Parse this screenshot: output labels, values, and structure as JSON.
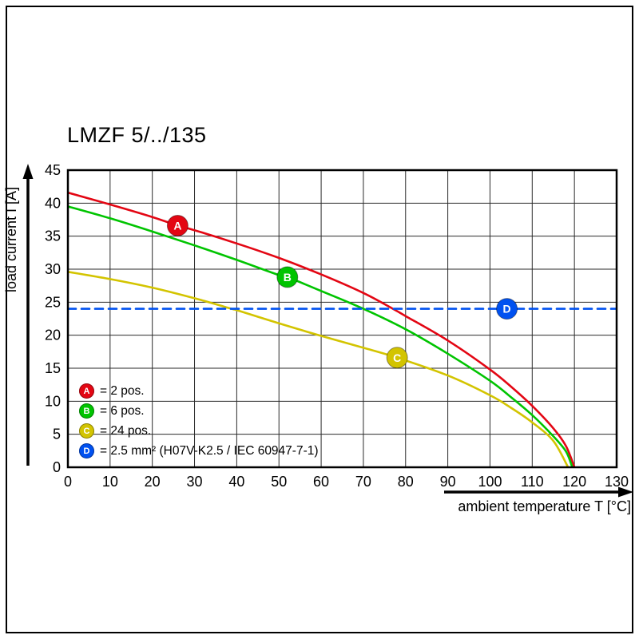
{
  "chart_data": {
    "type": "line",
    "title": "LMZF 5/../135",
    "xlabel": "ambient temperature T [°C]",
    "ylabel": "load current I [A]",
    "xlim": [
      0,
      130
    ],
    "ylim": [
      0,
      45
    ],
    "x_ticks": [
      0,
      10,
      20,
      30,
      40,
      50,
      60,
      70,
      80,
      90,
      100,
      110,
      120,
      130
    ],
    "y_ticks": [
      0,
      5,
      10,
      15,
      20,
      25,
      30,
      35,
      40,
      45
    ],
    "grid": true,
    "frame_color": "#000000",
    "grid_color": "#2a2a2a",
    "series": [
      {
        "id": "A",
        "name": "2 pos.",
        "color": "#e30613",
        "style": "solid",
        "marker_at": [
          26,
          36.6
        ],
        "points": [
          [
            0,
            41.6
          ],
          [
            10,
            39.8
          ],
          [
            20,
            37.9
          ],
          [
            26,
            36.6
          ],
          [
            30,
            35.9
          ],
          [
            40,
            33.9
          ],
          [
            50,
            31.7
          ],
          [
            60,
            29.2
          ],
          [
            70,
            26.4
          ],
          [
            77,
            24.0
          ],
          [
            80,
            22.9
          ],
          [
            90,
            19.2
          ],
          [
            100,
            14.8
          ],
          [
            105,
            12.2
          ],
          [
            110,
            9.3
          ],
          [
            115,
            5.9
          ],
          [
            118,
            3.2
          ],
          [
            120,
            0
          ]
        ]
      },
      {
        "id": "B",
        "name": "6 pos.",
        "color": "#00c400",
        "style": "solid",
        "marker_at": [
          52,
          28.8
        ],
        "points": [
          [
            0,
            39.5
          ],
          [
            10,
            37.7
          ],
          [
            20,
            35.7
          ],
          [
            30,
            33.6
          ],
          [
            40,
            31.4
          ],
          [
            50,
            29.1
          ],
          [
            52,
            28.8
          ],
          [
            60,
            26.7
          ],
          [
            70,
            24.0
          ],
          [
            80,
            20.9
          ],
          [
            90,
            17.2
          ],
          [
            100,
            13.1
          ],
          [
            105,
            10.6
          ],
          [
            110,
            7.9
          ],
          [
            115,
            4.7
          ],
          [
            118,
            2.4
          ],
          [
            119.5,
            0
          ]
        ]
      },
      {
        "id": "C",
        "name": "24 pos.",
        "color": "#d3c400",
        "style": "solid",
        "marker_at": [
          78,
          16.6
        ],
        "points": [
          [
            0,
            29.6
          ],
          [
            10,
            28.5
          ],
          [
            20,
            27.2
          ],
          [
            30,
            25.6
          ],
          [
            38.8,
            24.0
          ],
          [
            40,
            23.8
          ],
          [
            50,
            21.8
          ],
          [
            60,
            19.9
          ],
          [
            70,
            18.1
          ],
          [
            78,
            16.6
          ],
          [
            90,
            13.9
          ],
          [
            100,
            10.9
          ],
          [
            105,
            9.0
          ],
          [
            110,
            6.8
          ],
          [
            115,
            4.0
          ],
          [
            118.5,
            0
          ]
        ]
      },
      {
        "id": "D",
        "name": "2.5 mm² (H07V-K2.5 / IEC 60947-7-1)",
        "color": "#0051f0",
        "style": "dashed",
        "marker_at": [
          104,
          24
        ],
        "points": [
          [
            0,
            24
          ],
          [
            130,
            24
          ]
        ]
      }
    ],
    "legend_position": "bottom-left",
    "legend": [
      {
        "id": "A",
        "color": "#e30613",
        "label": "= 2 pos."
      },
      {
        "id": "B",
        "color": "#00c400",
        "label": "= 6 pos."
      },
      {
        "id": "C",
        "color": "#d3c400",
        "label": "= 24 pos."
      },
      {
        "id": "D",
        "color": "#0051f0",
        "label": "= 2.5 mm² (H07V-K2.5 / IEC 60947-7-1)"
      }
    ]
  }
}
